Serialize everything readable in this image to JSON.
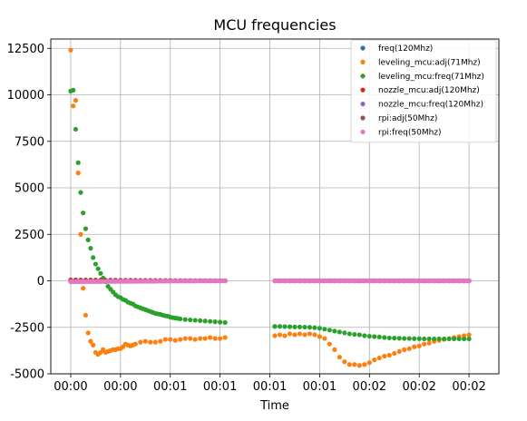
{
  "chart_data": {
    "type": "scatter",
    "title": "MCU frequencies",
    "xlabel": "Time",
    "ylabel": "",
    "grid": true,
    "legend_position": "top-right",
    "xlim": [
      -4,
      86
    ],
    "ylim": [
      -5000,
      13000
    ],
    "x_ticks": [
      0,
      10,
      20,
      30,
      40,
      50,
      60,
      70,
      80
    ],
    "x_tick_labels": [
      "00:00",
      "00:00",
      "00:01",
      "00:01",
      "00:01",
      "00:01",
      "00:02",
      "00:02",
      "00:02"
    ],
    "y_ticks": [
      -5000,
      -2500,
      0,
      2500,
      5000,
      7500,
      10000,
      12500
    ],
    "y_tick_labels": [
      "-5000",
      "-2500",
      "0",
      "2500",
      "5000",
      "7500",
      "10000",
      "12500"
    ],
    "series": [
      {
        "name": "freq(120Mhz)",
        "color": "#1f77b4",
        "segments": [
          {
            "x_start": 0,
            "x_end": 31,
            "step": 1,
            "y": [
              0,
              0
            ]
          },
          {
            "x_start": 41,
            "x_end": 80,
            "step": 1,
            "y": [
              0,
              0
            ]
          }
        ]
      },
      {
        "name": "leveling_mcu:adj(71Mhz)",
        "color": "#ff7f0e",
        "points": [
          [
            0,
            12400
          ],
          [
            0.5,
            9400
          ],
          [
            1,
            9700
          ],
          [
            1.5,
            5800
          ],
          [
            2,
            2500
          ],
          [
            2.5,
            -400
          ],
          [
            3,
            -1850
          ],
          [
            3.5,
            -2800
          ],
          [
            4,
            -3250
          ],
          [
            4.5,
            -3450
          ],
          [
            5,
            -3850
          ],
          [
            5.5,
            -3950
          ],
          [
            6,
            -3850
          ],
          [
            6.5,
            -3700
          ],
          [
            7,
            -3850
          ],
          [
            7.5,
            -3800
          ],
          [
            8,
            -3750
          ],
          [
            8.5,
            -3700
          ],
          [
            9,
            -3700
          ],
          [
            9.5,
            -3650
          ],
          [
            10,
            -3650
          ],
          [
            10.5,
            -3550
          ],
          [
            11,
            -3400
          ],
          [
            11.5,
            -3450
          ],
          [
            12,
            -3500
          ],
          [
            12.5,
            -3450
          ],
          [
            13,
            -3400
          ],
          [
            14,
            -3300
          ],
          [
            15,
            -3250
          ],
          [
            16,
            -3300
          ],
          [
            17,
            -3300
          ],
          [
            18,
            -3250
          ],
          [
            19,
            -3150
          ],
          [
            20,
            -3150
          ],
          [
            21,
            -3200
          ],
          [
            22,
            -3150
          ],
          [
            23,
            -3100
          ],
          [
            24,
            -3100
          ],
          [
            25,
            -3150
          ],
          [
            26,
            -3100
          ],
          [
            27,
            -3100
          ],
          [
            28,
            -3050
          ],
          [
            29,
            -3100
          ],
          [
            30,
            -3100
          ],
          [
            31,
            -3050
          ],
          [
            41,
            -2950
          ],
          [
            42,
            -2900
          ],
          [
            43,
            -2950
          ],
          [
            44,
            -2850
          ],
          [
            45,
            -2900
          ],
          [
            46,
            -2850
          ],
          [
            47,
            -2900
          ],
          [
            48,
            -2850
          ],
          [
            49,
            -2900
          ],
          [
            50,
            -3000
          ],
          [
            51,
            -3100
          ],
          [
            52,
            -3400
          ],
          [
            53,
            -3700
          ],
          [
            54,
            -4100
          ],
          [
            55,
            -4350
          ],
          [
            56,
            -4500
          ],
          [
            57,
            -4500
          ],
          [
            58,
            -4550
          ],
          [
            59,
            -4500
          ],
          [
            60,
            -4400
          ],
          [
            61,
            -4250
          ],
          [
            62,
            -4150
          ],
          [
            63,
            -4050
          ],
          [
            64,
            -4000
          ],
          [
            65,
            -3900
          ],
          [
            66,
            -3800
          ],
          [
            67,
            -3700
          ],
          [
            68,
            -3650
          ],
          [
            69,
            -3550
          ],
          [
            70,
            -3500
          ],
          [
            71,
            -3400
          ],
          [
            72,
            -3350
          ],
          [
            73,
            -3250
          ],
          [
            74,
            -3200
          ],
          [
            75,
            -3150
          ],
          [
            76,
            -3100
          ],
          [
            77,
            -3050
          ],
          [
            78,
            -3000
          ],
          [
            79,
            -2950
          ],
          [
            80,
            -2900
          ]
        ]
      },
      {
        "name": "leveling_mcu:freq(71Mhz)",
        "color": "#2ca02c",
        "points": [
          [
            0,
            10200
          ],
          [
            0.5,
            10250
          ],
          [
            1,
            8150
          ],
          [
            1.5,
            6350
          ],
          [
            2,
            4750
          ],
          [
            2.5,
            3650
          ],
          [
            3,
            2800
          ],
          [
            3.5,
            2200
          ],
          [
            4,
            1750
          ],
          [
            4.5,
            1250
          ],
          [
            5,
            900
          ],
          [
            5.5,
            650
          ],
          [
            6,
            400
          ],
          [
            6.5,
            150
          ],
          [
            7,
            -50
          ],
          [
            7.5,
            -300
          ],
          [
            8,
            -450
          ],
          [
            8.5,
            -600
          ],
          [
            9,
            -750
          ],
          [
            9.5,
            -850
          ],
          [
            10,
            -900
          ],
          [
            10.5,
            -1000
          ],
          [
            11,
            -1050
          ],
          [
            11.5,
            -1150
          ],
          [
            12,
            -1200
          ],
          [
            12.5,
            -1250
          ],
          [
            13,
            -1350
          ],
          [
            13.5,
            -1400
          ],
          [
            14,
            -1450
          ],
          [
            14.5,
            -1500
          ],
          [
            15,
            -1550
          ],
          [
            15.5,
            -1600
          ],
          [
            16,
            -1650
          ],
          [
            16.5,
            -1700
          ],
          [
            17,
            -1750
          ],
          [
            17.5,
            -1780
          ],
          [
            18,
            -1800
          ],
          [
            18.5,
            -1850
          ],
          [
            19,
            -1880
          ],
          [
            19.5,
            -1900
          ],
          [
            20,
            -1950
          ],
          [
            20.5,
            -1980
          ],
          [
            21,
            -2000
          ],
          [
            21.5,
            -2020
          ],
          [
            22,
            -2050
          ],
          [
            23,
            -2080
          ],
          [
            24,
            -2100
          ],
          [
            25,
            -2120
          ],
          [
            26,
            -2140
          ],
          [
            27,
            -2160
          ],
          [
            28,
            -2180
          ],
          [
            29,
            -2200
          ],
          [
            30,
            -2220
          ],
          [
            31,
            -2240
          ],
          [
            41,
            -2450
          ],
          [
            42,
            -2450
          ],
          [
            43,
            -2460
          ],
          [
            44,
            -2470
          ],
          [
            45,
            -2480
          ],
          [
            46,
            -2480
          ],
          [
            47,
            -2490
          ],
          [
            48,
            -2500
          ],
          [
            49,
            -2520
          ],
          [
            50,
            -2550
          ],
          [
            51,
            -2600
          ],
          [
            52,
            -2650
          ],
          [
            53,
            -2700
          ],
          [
            54,
            -2750
          ],
          [
            55,
            -2800
          ],
          [
            56,
            -2850
          ],
          [
            57,
            -2880
          ],
          [
            58,
            -2900
          ],
          [
            59,
            -2950
          ],
          [
            60,
            -2980
          ],
          [
            61,
            -3000
          ],
          [
            62,
            -3020
          ],
          [
            63,
            -3050
          ],
          [
            64,
            -3070
          ],
          [
            65,
            -3080
          ],
          [
            66,
            -3090
          ],
          [
            67,
            -3100
          ],
          [
            68,
            -3100
          ],
          [
            69,
            -3110
          ],
          [
            70,
            -3110
          ],
          [
            71,
            -3120
          ],
          [
            72,
            -3120
          ],
          [
            73,
            -3120
          ],
          [
            74,
            -3120
          ],
          [
            75,
            -3120
          ],
          [
            76,
            -3120
          ],
          [
            77,
            -3120
          ],
          [
            78,
            -3120
          ],
          [
            79,
            -3120
          ],
          [
            80,
            -3120
          ]
        ]
      },
      {
        "name": "nozzle_mcu:adj(120Mhz)",
        "color": "#d62728",
        "segments": [
          {
            "x_start": 0,
            "x_end": 31,
            "step": 1,
            "y": [
              50,
              0
            ]
          },
          {
            "x_start": 41,
            "x_end": 80,
            "step": 1,
            "y": [
              0,
              0
            ]
          }
        ]
      },
      {
        "name": "nozzle_mcu:freq(120Mhz)",
        "color": "#9467bd",
        "segments": [
          {
            "x_start": 0,
            "x_end": 31,
            "step": 1,
            "y": [
              0,
              0
            ]
          },
          {
            "x_start": 41,
            "x_end": 80,
            "step": 1,
            "y": [
              0,
              0
            ]
          }
        ]
      },
      {
        "name": "rpi:adj(50Mhz)",
        "color": "#8c564b",
        "segments": [
          {
            "x_start": 0,
            "x_end": 31,
            "step": 1,
            "y": [
              0,
              0
            ]
          },
          {
            "x_start": 41,
            "x_end": 80,
            "step": 1,
            "y": [
              0,
              0
            ]
          }
        ]
      },
      {
        "name": "rpi:freq(50Mhz)",
        "color": "#e377c2",
        "segments": [
          {
            "x_start": 0,
            "x_end": 31,
            "step": 0.5,
            "y": [
              -50,
              0
            ]
          },
          {
            "x_start": 41,
            "x_end": 80,
            "step": 0.5,
            "y": [
              0,
              0
            ]
          }
        ]
      }
    ]
  }
}
